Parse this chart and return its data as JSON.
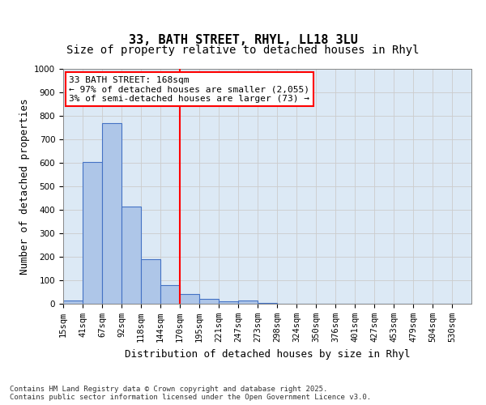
{
  "title": "33, BATH STREET, RHYL, LL18 3LU",
  "subtitle": "Size of property relative to detached houses in Rhyl",
  "xlabel": "Distribution of detached houses by size in Rhyl",
  "ylabel": "Number of detached properties",
  "categories": [
    "15sqm",
    "41sqm",
    "67sqm",
    "92sqm",
    "118sqm",
    "144sqm",
    "170sqm",
    "195sqm",
    "221sqm",
    "247sqm",
    "273sqm",
    "298sqm",
    "324sqm",
    "350sqm",
    "376sqm",
    "401sqm",
    "427sqm",
    "453sqm",
    "479sqm",
    "504sqm",
    "530sqm"
  ],
  "bar_values": [
    15,
    605,
    770,
    415,
    190,
    80,
    40,
    20,
    10,
    15,
    2,
    0,
    0,
    0,
    0,
    0,
    0,
    0,
    0,
    0,
    0
  ],
  "ylim": [
    0,
    1000
  ],
  "yticks": [
    0,
    100,
    200,
    300,
    400,
    500,
    600,
    700,
    800,
    900,
    1000
  ],
  "bar_color": "#aec6e8",
  "bar_edge_color": "#4472c4",
  "vline_color": "red",
  "annotation_text": "33 BATH STREET: 168sqm\n← 97% of detached houses are smaller (2,055)\n3% of semi-detached houses are larger (73) →",
  "grid_color": "#cccccc",
  "background_color": "#dce9f5",
  "footer": "Contains HM Land Registry data © Crown copyright and database right 2025.\nContains public sector information licensed under the Open Government Licence v3.0.",
  "title_fontsize": 11,
  "subtitle_fontsize": 10,
  "xlabel_fontsize": 9,
  "ylabel_fontsize": 9,
  "tick_fontsize": 7.5,
  "annotation_fontsize": 8,
  "footer_fontsize": 6.5
}
